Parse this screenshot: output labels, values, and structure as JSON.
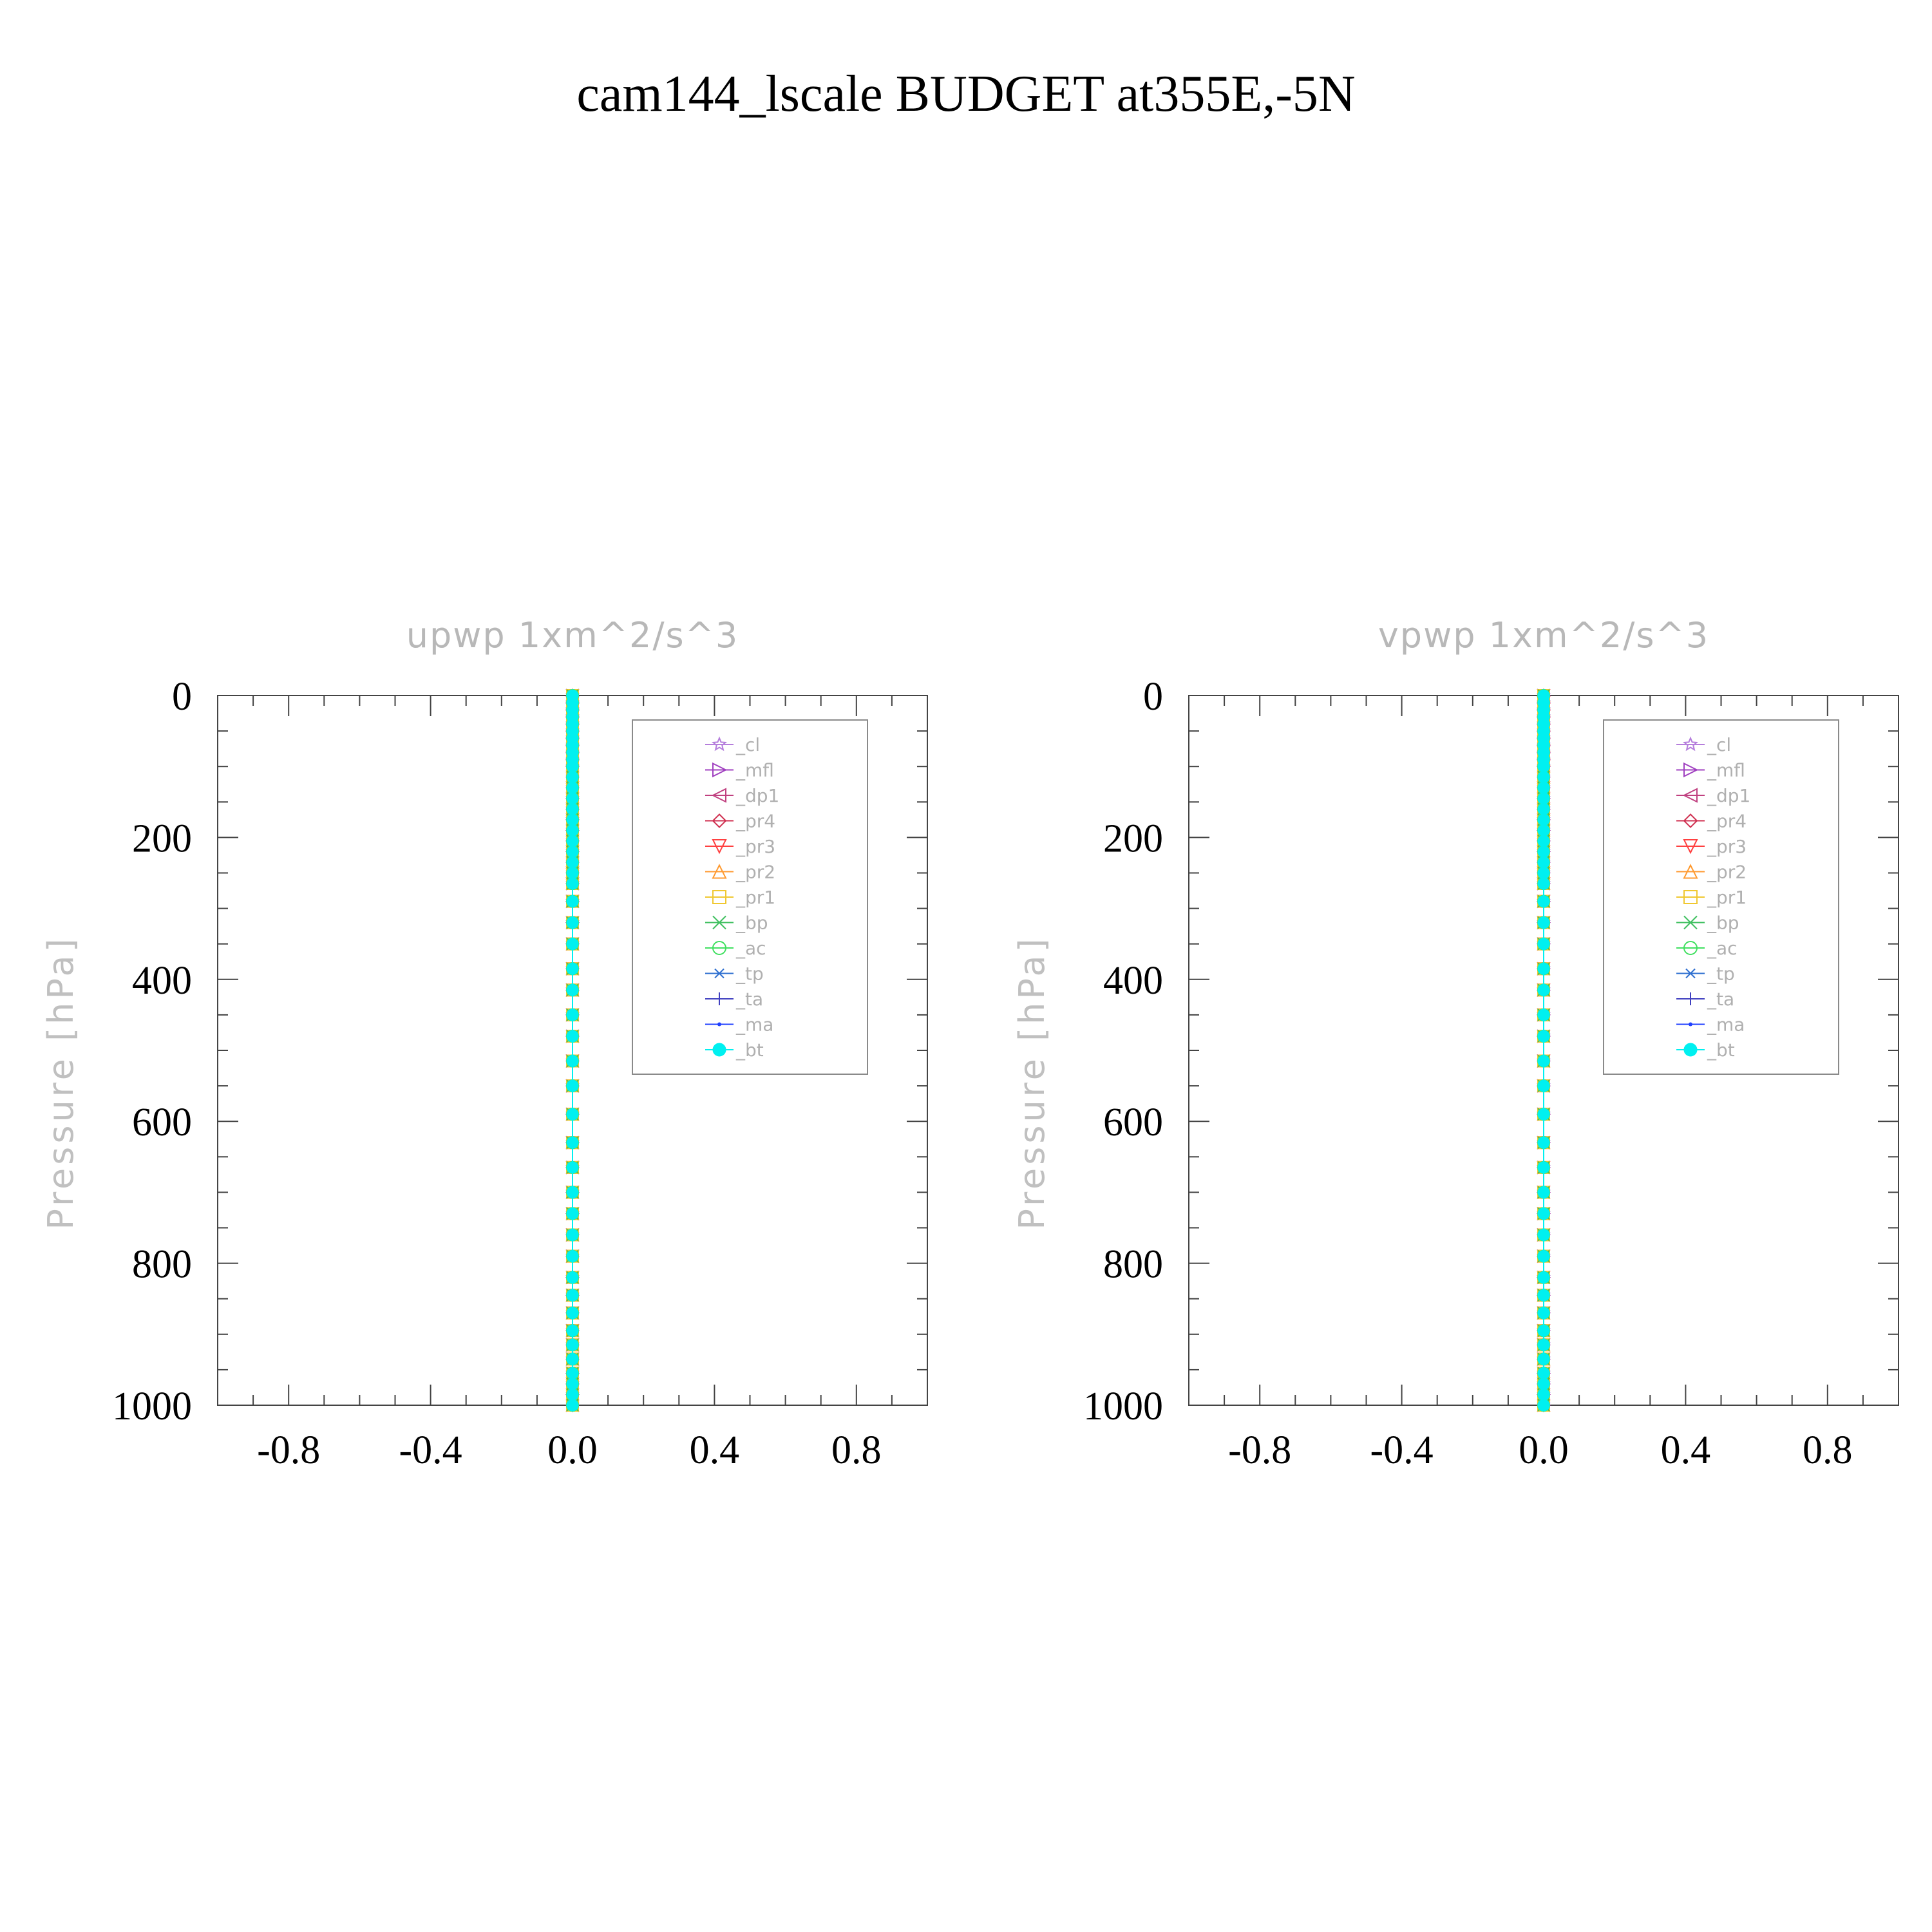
{
  "title": "cam144_lscale  BUDGET at355E,-5N",
  "colors": {
    "_cl": "#b57edc",
    "_mfl": "#a040c0",
    "_dp1": "#c04080",
    "_pr4": "#d03050",
    "_pr3": "#ff4040",
    "_pr2": "#ff9a30",
    "_pr1": "#f0c830",
    "_bp": "#40c060",
    "_ac": "#40e060",
    "_tp": "#3070d0",
    "_ta": "#4040c0",
    "_ma": "#2040ff",
    "_bt": "#00f0f0"
  },
  "chart_data": [
    {
      "type": "line",
      "title": "upwp    1xm^2/s^3",
      "xlabel": "",
      "ylabel": "Pressure  [hPa]",
      "xlim": [
        -1.0,
        1.0
      ],
      "ylim": [
        1000,
        0
      ],
      "y_inverted": true,
      "grid": false,
      "legend_position": "top-right",
      "x_ticks": [
        "-0.8",
        "-0.4",
        "0.0",
        "0.4",
        "0.8"
      ],
      "y_ticks": [
        "0",
        "200",
        "400",
        "600",
        "800",
        "1000"
      ],
      "y": [
        0,
        10,
        20,
        30,
        40,
        50,
        60,
        70,
        80,
        90,
        100,
        115,
        130,
        145,
        160,
        175,
        190,
        205,
        220,
        235,
        250,
        265,
        290,
        320,
        350,
        385,
        415,
        450,
        480,
        515,
        550,
        590,
        630,
        665,
        700,
        730,
        760,
        790,
        820,
        845,
        870,
        895,
        915,
        935,
        955,
        970,
        985,
        1000
      ],
      "series": [
        {
          "name": "_cl",
          "marker": "star",
          "value": 0.0
        },
        {
          "name": "_mfl",
          "marker": "triangle-right",
          "value": 0.0
        },
        {
          "name": "_dp1",
          "marker": "triangle-left",
          "value": 0.0
        },
        {
          "name": "_pr4",
          "marker": "diamond",
          "value": 0.0
        },
        {
          "name": "_pr3",
          "marker": "triangle-down",
          "value": 0.0
        },
        {
          "name": "_pr2",
          "marker": "triangle-up",
          "value": 0.0
        },
        {
          "name": "_pr1",
          "marker": "square",
          "value": 0.0
        },
        {
          "name": "_bp",
          "marker": "x",
          "value": 0.0
        },
        {
          "name": "_ac",
          "marker": "circle",
          "value": 0.0
        },
        {
          "name": "_tp",
          "marker": "asterisk",
          "value": 0.0
        },
        {
          "name": "_ta",
          "marker": "plus",
          "value": 0.0
        },
        {
          "name": "_ma",
          "marker": "dot",
          "value": 0.0
        },
        {
          "name": "_bt",
          "marker": "filled-circle",
          "value": 0.0
        }
      ]
    },
    {
      "type": "line",
      "title": "vpwp    1xm^2/s^3",
      "xlabel": "",
      "ylabel": "Pressure  [hPa]",
      "xlim": [
        -1.0,
        1.0
      ],
      "ylim": [
        1000,
        0
      ],
      "y_inverted": true,
      "grid": false,
      "legend_position": "top-right",
      "x_ticks": [
        "-0.8",
        "-0.4",
        "0.0",
        "0.4",
        "0.8"
      ],
      "y_ticks": [
        "0",
        "200",
        "400",
        "600",
        "800",
        "1000"
      ],
      "y": [
        0,
        10,
        20,
        30,
        40,
        50,
        60,
        70,
        80,
        90,
        100,
        115,
        130,
        145,
        160,
        175,
        190,
        205,
        220,
        235,
        250,
        265,
        290,
        320,
        350,
        385,
        415,
        450,
        480,
        515,
        550,
        590,
        630,
        665,
        700,
        730,
        760,
        790,
        820,
        845,
        870,
        895,
        915,
        935,
        955,
        970,
        985,
        1000
      ],
      "series": [
        {
          "name": "_cl",
          "marker": "star",
          "value": 0.0
        },
        {
          "name": "_mfl",
          "marker": "triangle-right",
          "value": 0.0
        },
        {
          "name": "_dp1",
          "marker": "triangle-left",
          "value": 0.0
        },
        {
          "name": "_pr4",
          "marker": "diamond",
          "value": 0.0
        },
        {
          "name": "_pr3",
          "marker": "triangle-down",
          "value": 0.0
        },
        {
          "name": "_pr2",
          "marker": "triangle-up",
          "value": 0.0
        },
        {
          "name": "_pr1",
          "marker": "square",
          "value": 0.0
        },
        {
          "name": "_bp",
          "marker": "x",
          "value": 0.0
        },
        {
          "name": "_ac",
          "marker": "circle",
          "value": 0.0
        },
        {
          "name": "_tp",
          "marker": "asterisk",
          "value": 0.0
        },
        {
          "name": "_ta",
          "marker": "plus",
          "value": 0.0
        },
        {
          "name": "_ma",
          "marker": "dot",
          "value": 0.0
        },
        {
          "name": "_bt",
          "marker": "filled-circle",
          "value": 0.0
        }
      ]
    }
  ]
}
